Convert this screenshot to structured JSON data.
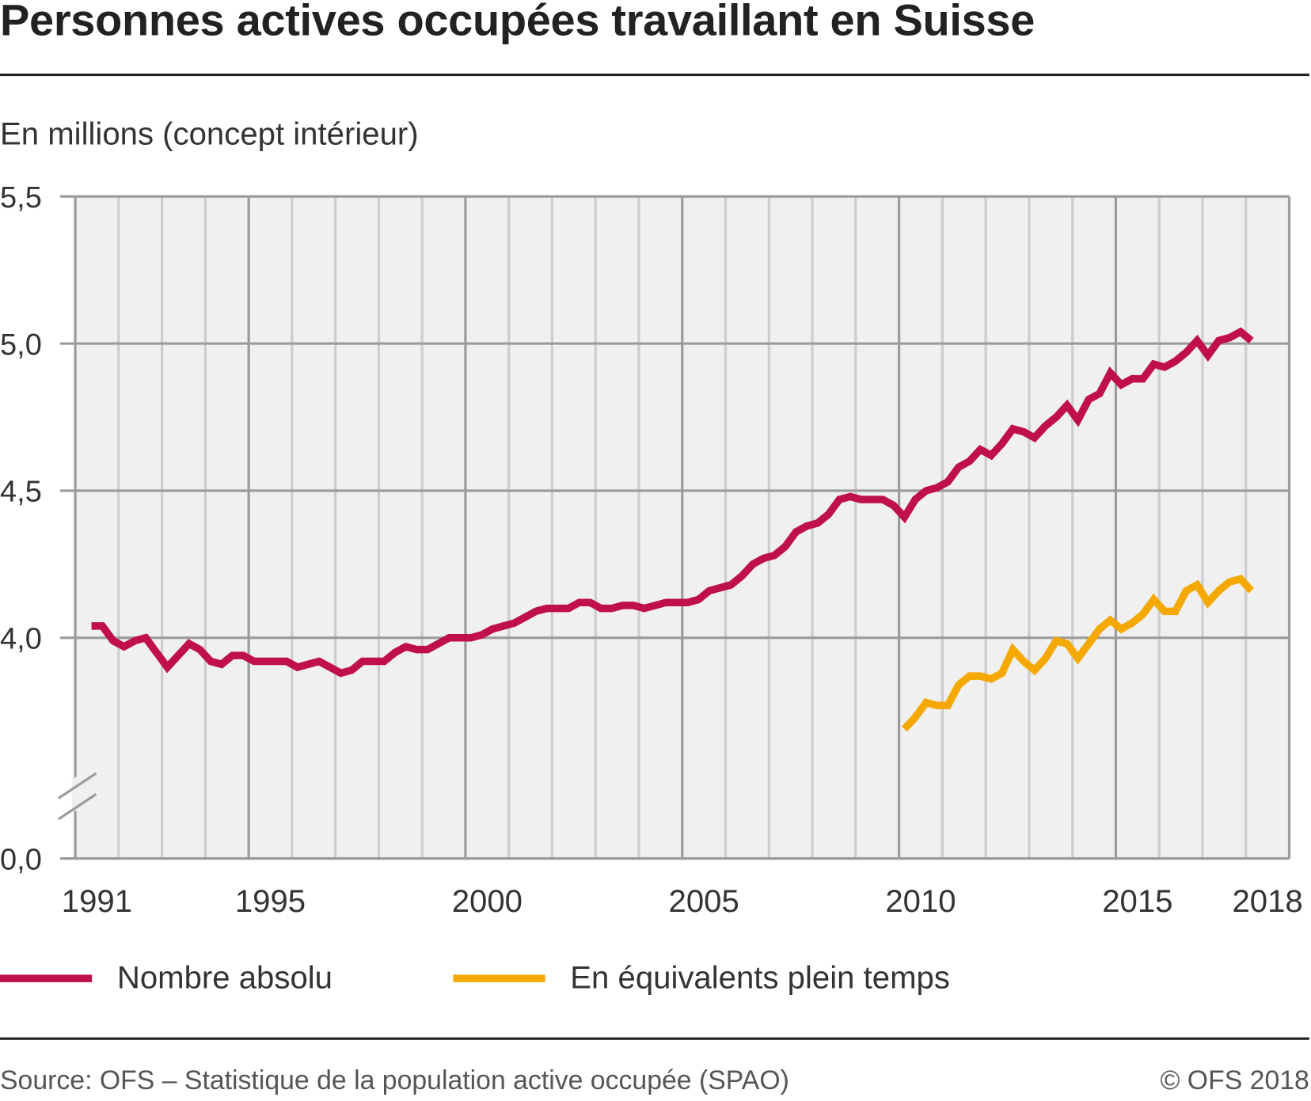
{
  "header": {
    "title": "Personnes actives occupées travaillant en Suisse",
    "subtitle": "En millions (concept intérieur)"
  },
  "footer": {
    "source": "Source: OFS – Statistique de la population active occupée (SPAO)",
    "copyright": "© OFS 2018"
  },
  "chart_data": {
    "type": "line",
    "title": "Personnes actives occupées travaillant en Suisse",
    "ylabel": "En millions (concept intérieur)",
    "xlabel": "",
    "frequency": "quarterly",
    "x_range": [
      1991,
      2019
    ],
    "y_ticks": [
      "5,5",
      "5,0",
      "4,5",
      "4,0",
      "0,0"
    ],
    "y_tick_values": [
      5.5,
      5.0,
      4.5,
      4.0,
      0.0
    ],
    "y_axis_break": true,
    "x_ticks": [
      "1991",
      "1995",
      "2000",
      "2005",
      "2010",
      "2015",
      "2018"
    ],
    "x_tick_years": [
      1991,
      1995,
      2000,
      2005,
      2010,
      2015,
      2018
    ],
    "grid": true,
    "legend_position": "bottom",
    "series": [
      {
        "name": "Nombre absolu",
        "color": "#c0104a",
        "start_year": 1991,
        "start_quarter": 2,
        "values": [
          4.04,
          4.04,
          3.99,
          3.97,
          3.99,
          4.0,
          3.95,
          3.9,
          3.94,
          3.98,
          3.96,
          3.92,
          3.91,
          3.94,
          3.94,
          3.92,
          3.92,
          3.92,
          3.92,
          3.9,
          3.91,
          3.92,
          3.9,
          3.88,
          3.89,
          3.92,
          3.92,
          3.92,
          3.95,
          3.97,
          3.96,
          3.96,
          3.98,
          4.0,
          4.0,
          4.0,
          4.01,
          4.03,
          4.04,
          4.05,
          4.07,
          4.09,
          4.1,
          4.1,
          4.1,
          4.12,
          4.12,
          4.1,
          4.1,
          4.11,
          4.11,
          4.1,
          4.11,
          4.12,
          4.12,
          4.12,
          4.13,
          4.16,
          4.17,
          4.18,
          4.21,
          4.25,
          4.27,
          4.28,
          4.31,
          4.36,
          4.38,
          4.39,
          4.42,
          4.47,
          4.48,
          4.47,
          4.47,
          4.47,
          4.45,
          4.41,
          4.47,
          4.5,
          4.51,
          4.53,
          4.58,
          4.6,
          4.64,
          4.62,
          4.66,
          4.71,
          4.7,
          4.68,
          4.72,
          4.75,
          4.79,
          4.74,
          4.81,
          4.83,
          4.9,
          4.86,
          4.88,
          4.88,
          4.93,
          4.92,
          4.94,
          4.97,
          5.01,
          4.96,
          5.01,
          5.02,
          5.04,
          5.01
        ]
      },
      {
        "name": "En équivalents plein temps",
        "color": "#f5a800",
        "start_year": 2010,
        "start_quarter": 1,
        "values": [
          3.69,
          3.73,
          3.78,
          3.77,
          3.77,
          3.84,
          3.87,
          3.87,
          3.86,
          3.88,
          3.96,
          3.92,
          3.89,
          3.93,
          3.99,
          3.98,
          3.93,
          3.98,
          4.03,
          4.06,
          4.03,
          4.05,
          4.08,
          4.13,
          4.09,
          4.09,
          4.16,
          4.18,
          4.12,
          4.16,
          4.19,
          4.2,
          4.16
        ]
      }
    ]
  }
}
